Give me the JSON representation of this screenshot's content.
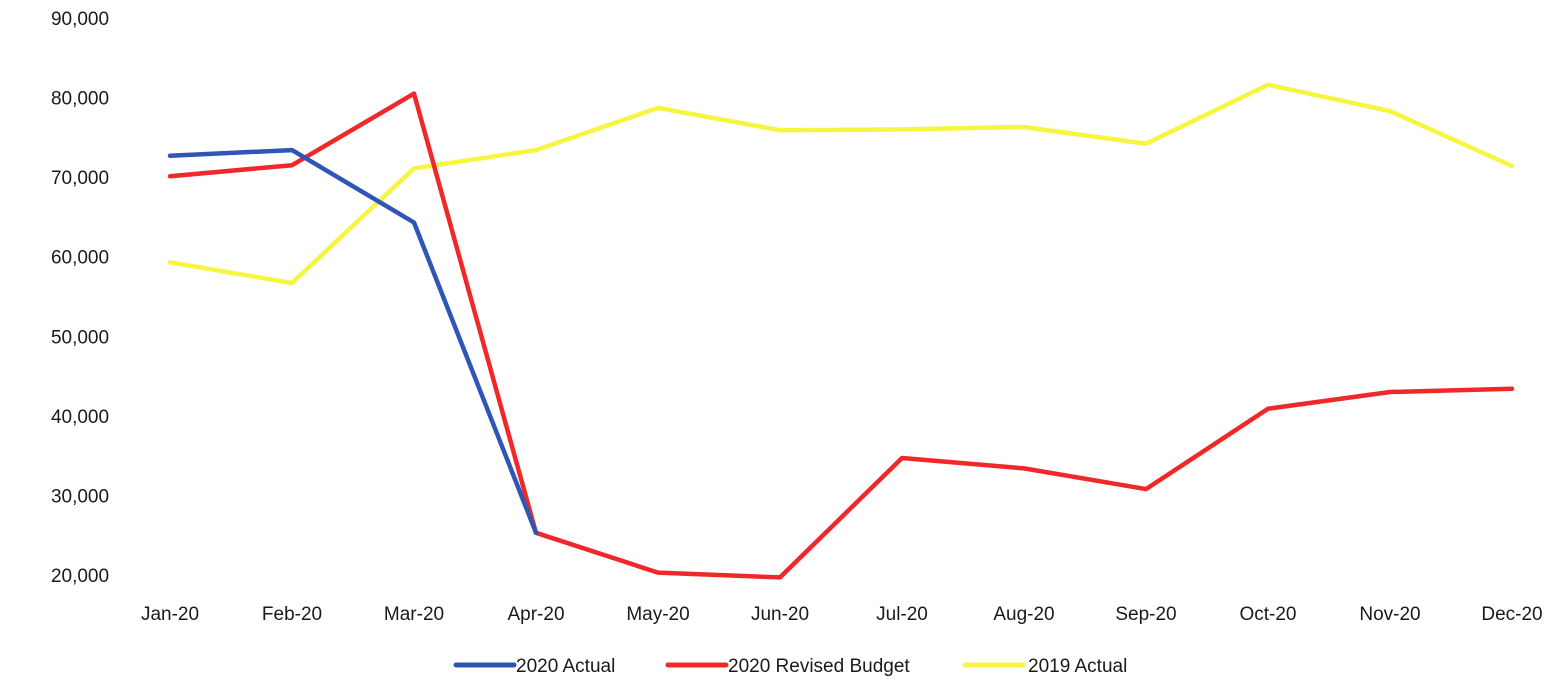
{
  "chart_data": {
    "type": "line",
    "title": "",
    "xlabel": "",
    "ylabel": "",
    "ylim": [
      20000,
      90000
    ],
    "yticks": [
      20000,
      30000,
      40000,
      50000,
      60000,
      70000,
      80000,
      90000
    ],
    "ytick_labels": [
      "20,000",
      "30,000",
      "40,000",
      "50,000",
      "60,000",
      "70,000",
      "80,000",
      "90,000"
    ],
    "grid": false,
    "legend_position": "bottom",
    "categories": [
      "Jan-20",
      "Feb-20",
      "Mar-20",
      "Apr-20",
      "May-20",
      "Jun-20",
      "Jul-20",
      "Aug-20",
      "Sep-20",
      "Oct-20",
      "Nov-20",
      "Dec-20"
    ],
    "series": [
      {
        "name": "2020 Actual",
        "color": "#2f55b5",
        "values": [
          72700,
          73400,
          64300,
          25300,
          null,
          null,
          null,
          null,
          null,
          null,
          null,
          null
        ]
      },
      {
        "name": "2020 Revised Budget",
        "color": "#f0282a",
        "values": [
          70100,
          71500,
          80500,
          25300,
          20300,
          19700,
          34700,
          33400,
          30800,
          40900,
          43000,
          43400
        ]
      },
      {
        "name": "2019 Actual",
        "color": "#f5f542",
        "values": [
          59300,
          56700,
          71100,
          73400,
          78700,
          75900,
          76000,
          76300,
          74200,
          81600,
          78300,
          71400
        ]
      }
    ]
  }
}
